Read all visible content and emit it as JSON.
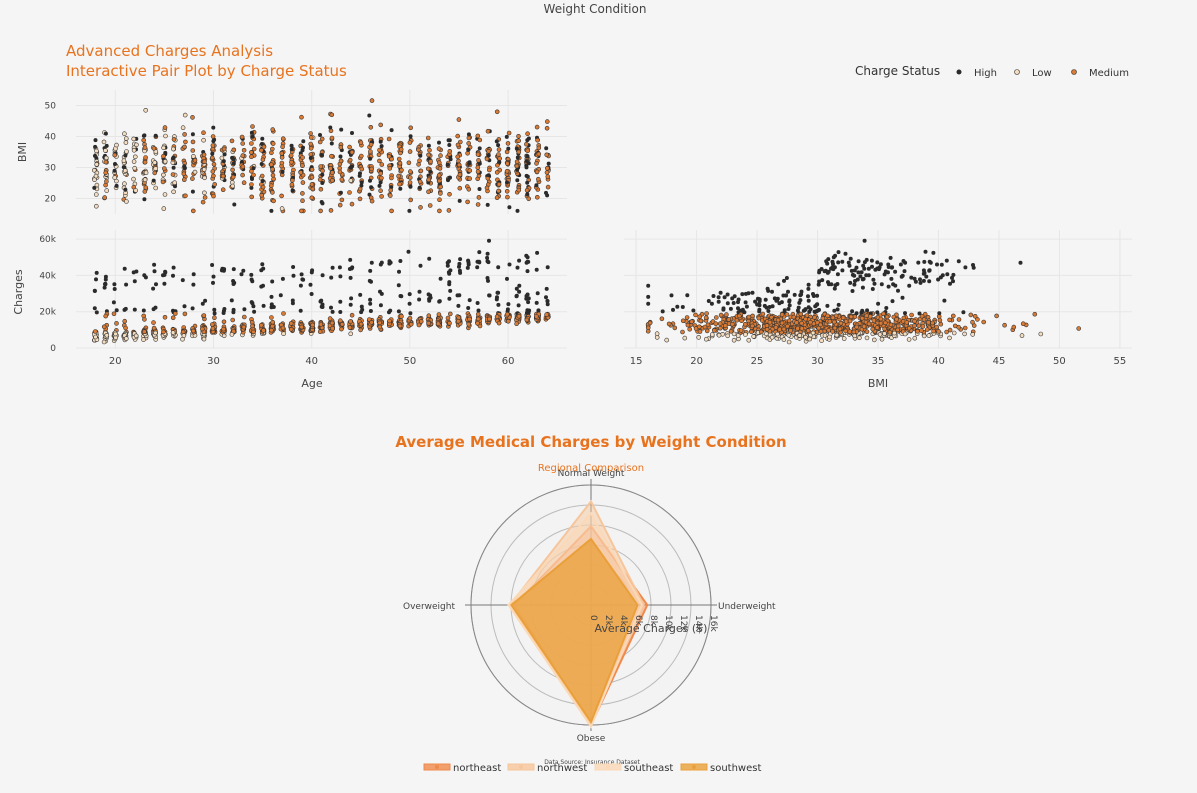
{
  "page": {
    "top_title": "Weight Condition",
    "source_note": "Data Source: Insurance Dataset"
  },
  "colors": {
    "High": "#2b2b2b",
    "Low": "#f3dcc0",
    "Medium": "#d97a35",
    "accent": "#e8731e",
    "northeast": "#f08a4b",
    "northwest": "#f7c59a",
    "southeast": "#fbd8b6",
    "southwest": "#eaa03a"
  },
  "chart_data": [
    {
      "type": "scatter",
      "title": "Advanced Charges Analysis",
      "subtitle": "Interactive Pair Plot by Charge Status",
      "panel": "Age vs BMI",
      "xlabel": "",
      "ylabel": "BMI",
      "xlim": [
        16,
        66
      ],
      "ylim": [
        15,
        55
      ],
      "x_ticks": [
        "20",
        "30",
        "40",
        "50",
        "60"
      ],
      "y_ticks": [
        "20",
        "30",
        "40",
        "50"
      ],
      "legend": {
        "title": "Charge Status",
        "entries": [
          "High",
          "Low",
          "Medium"
        ],
        "placement": "top-right"
      },
      "series": [
        {
          "name": "High",
          "note": "points across ages 18-64, BMI 17-53"
        },
        {
          "name": "Low",
          "note": "points concentrated at younger ages"
        },
        {
          "name": "Medium",
          "note": "points across ages"
        }
      ]
    },
    {
      "type": "scatter",
      "panel": "Age vs Charges",
      "xlabel": "Age",
      "ylabel": "Charges",
      "xlim": [
        16,
        66
      ],
      "ylim": [
        0,
        65000
      ],
      "x_ticks": [
        "20",
        "30",
        "40",
        "50",
        "60"
      ],
      "y_ticks": [
        "0",
        "20k",
        "40k",
        "60k"
      ]
    },
    {
      "type": "scatter",
      "panel": "BMI vs Charges",
      "xlabel": "BMI",
      "ylabel": "",
      "xlim": [
        14,
        56
      ],
      "ylim": [
        0,
        65000
      ],
      "x_ticks": [
        "15",
        "20",
        "25",
        "30",
        "35",
        "40",
        "45",
        "50",
        "55"
      ]
    },
    {
      "type": "radar",
      "title": "Average Medical Charges by Weight Condition",
      "subtitle": "Regional Comparison",
      "axis_title": "Average Charges ($)",
      "categories": [
        "Normal Weight",
        "Underweight",
        "Obese",
        "Overweight"
      ],
      "radial_range": [
        0,
        16000
      ],
      "radial_ticks": [
        "0",
        "2k",
        "4k",
        "6k",
        "8k",
        "10k",
        "12k",
        "14k",
        "16k"
      ],
      "series": [
        {
          "name": "northeast",
          "values": [
            10500,
            7500,
            16000,
            10200
          ]
        },
        {
          "name": "northwest",
          "values": [
            13800,
            7000,
            15800,
            10800
          ]
        },
        {
          "name": "southeast",
          "values": [
            12200,
            6800,
            16200,
            11000
          ]
        },
        {
          "name": "southwest",
          "values": [
            8800,
            6200,
            15600,
            10600
          ]
        }
      ]
    }
  ]
}
